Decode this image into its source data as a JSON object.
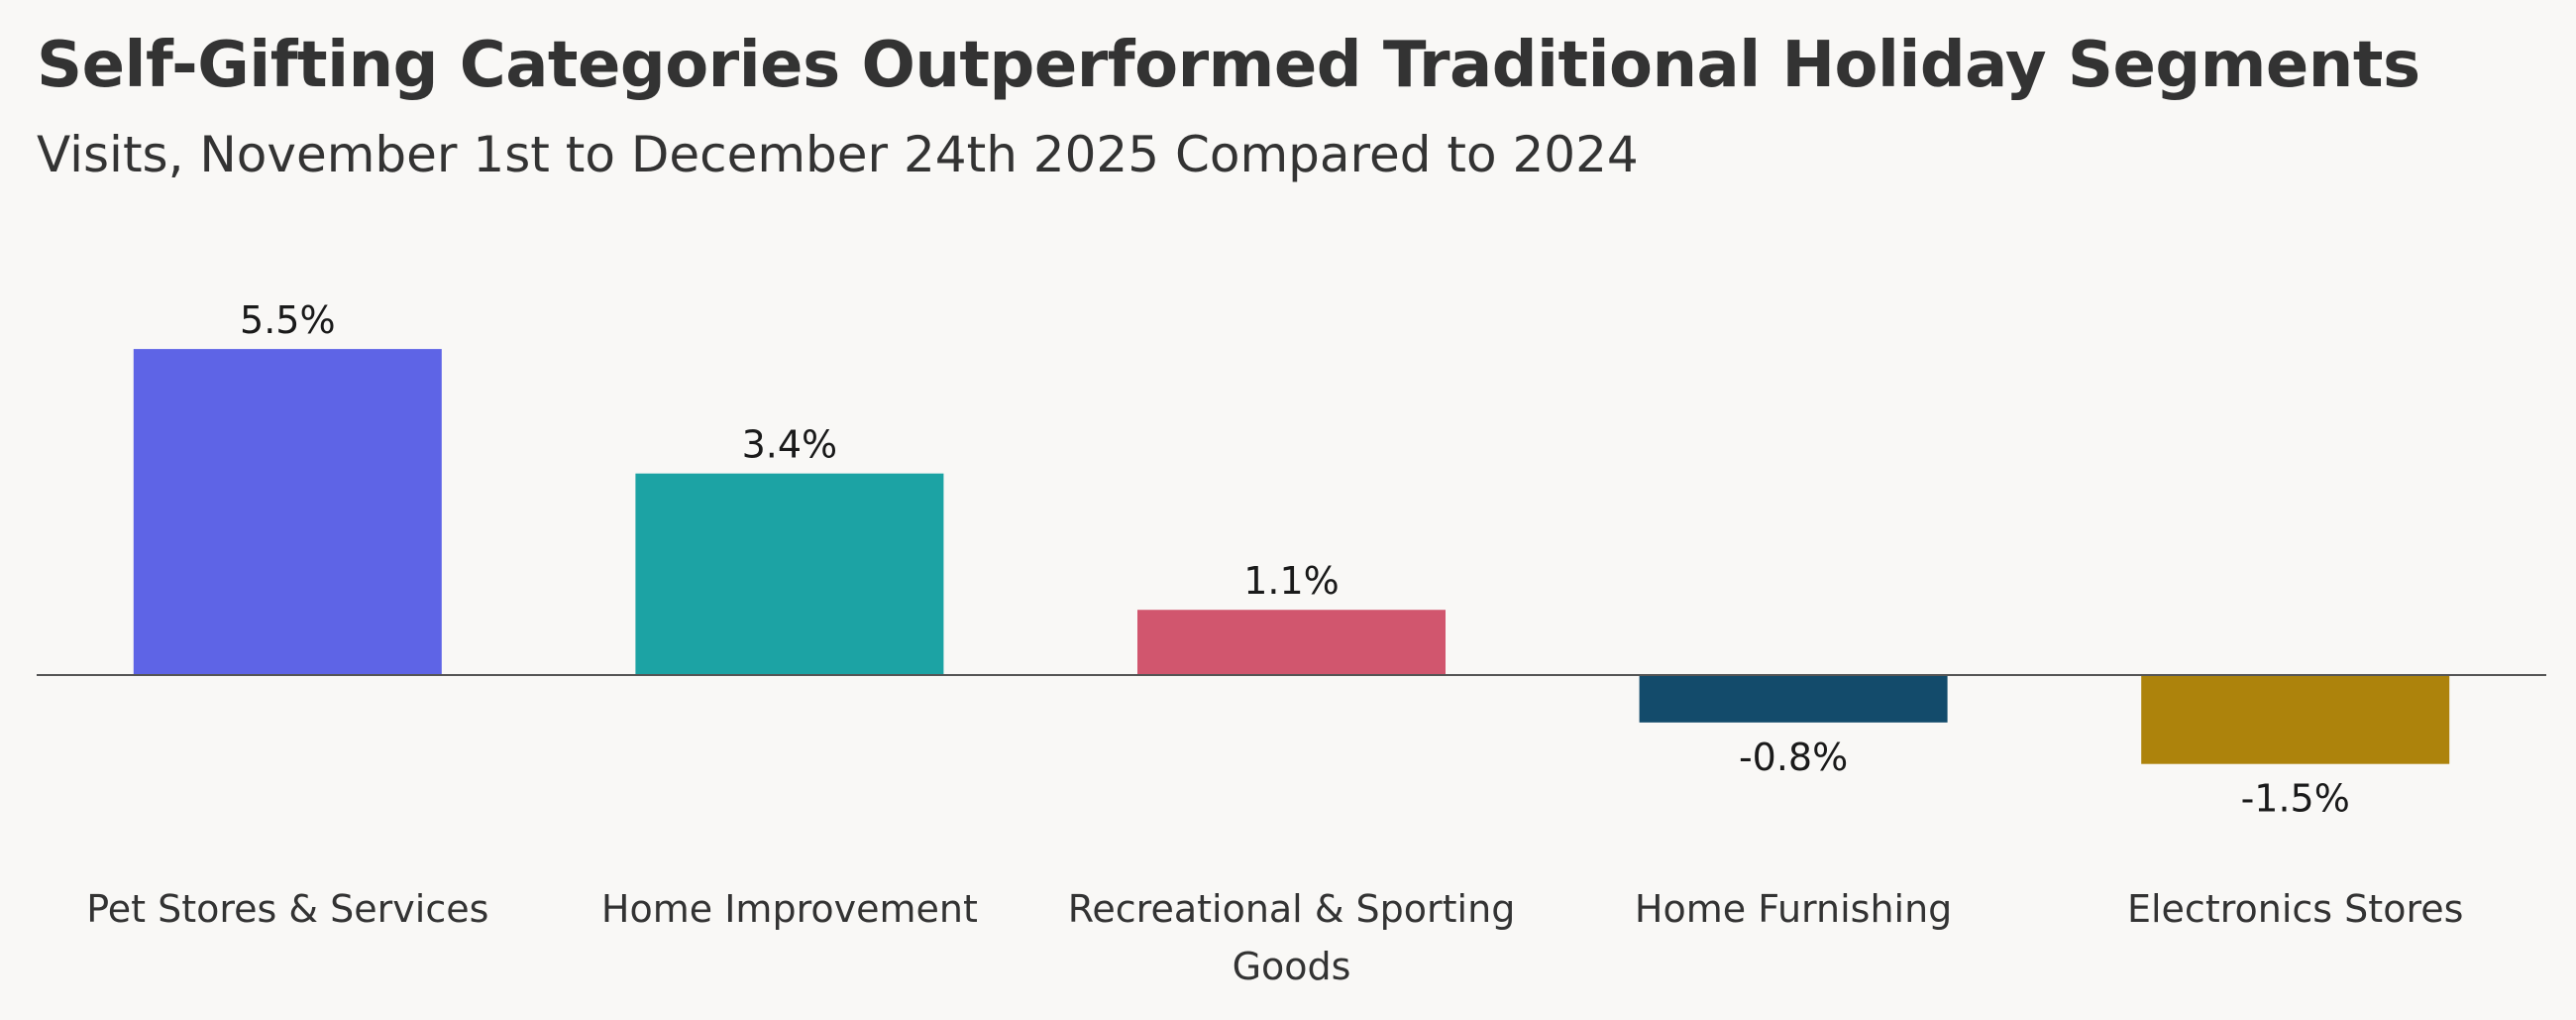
{
  "title": "Self-Gifting Categories Outperformed Traditional Holiday Segments",
  "subtitle": "Visits, November 1st to December 24th 2025 Compared to 2024",
  "chart_data": {
    "type": "bar",
    "title": "Self-Gifting Categories Outperformed Traditional Holiday Segments",
    "subtitle": "Visits, November 1st to December 24th 2025 Compared to 2024",
    "categories": [
      [
        "Pet Stores & Services"
      ],
      [
        "Home Improvement"
      ],
      [
        "Recreational & Sporting",
        "Goods"
      ],
      [
        "Home Furnishing"
      ],
      [
        "Electronics Stores"
      ]
    ],
    "values": [
      5.5,
      3.4,
      1.1,
      -0.8,
      -1.5
    ],
    "data_labels": [
      "5.5%",
      "3.4%",
      "1.1%",
      "-0.8%",
      "-1.5%"
    ],
    "colors": [
      "#5e64e6",
      "#1ca3a4",
      "#d1566e",
      "#134b6b",
      "#ad830c"
    ],
    "baseline_color": "#555555",
    "grid": false,
    "legend": "none",
    "xlabel": "",
    "ylabel": ""
  }
}
